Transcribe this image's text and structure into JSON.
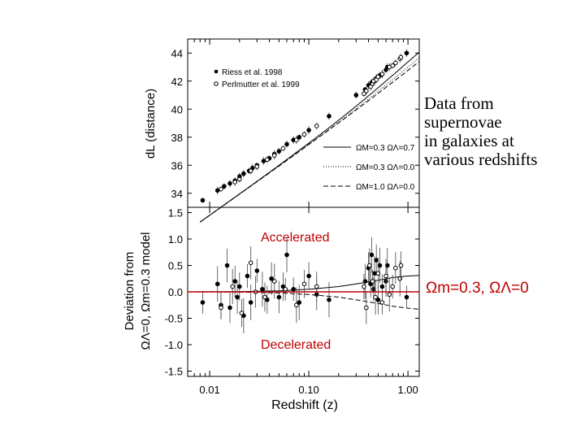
{
  "side_note": [
    "Data from",
    "supernovae",
    "in galaxies at",
    "various redshifts"
  ],
  "reference_line_label": [
    "Ωm=0.3",
    ", ",
    "ΩΛ=0"
  ],
  "colors": {
    "accent": "#c00000",
    "axes": "#000000",
    "data": "#000000",
    "reference_line": "#c00000"
  },
  "chart_data": [
    {
      "type": "scatter",
      "panel": "upper",
      "ylabel": "dL (distance)",
      "x_scale": "log",
      "xlim": [
        0.006,
        1.3
      ],
      "ylim": [
        33,
        45
      ],
      "y_ticks": [
        34,
        36,
        38,
        40,
        42,
        44
      ],
      "legend_data": [
        {
          "name": "Riess et al. 1998",
          "marker": "filled-circle"
        },
        {
          "name": "Perlmutter et al. 1999",
          "marker": "open-circle"
        }
      ],
      "legend_data_placement": "top-left",
      "legend_models": [
        {
          "name": "ΩM=0.3  ΩΛ=0.7",
          "style": "solid"
        },
        {
          "name": "ΩM=0.3  ΩΛ=0.0",
          "style": "dotted"
        },
        {
          "name": "ΩM=1.0  ΩΛ=0.0",
          "style": "dashed"
        }
      ],
      "legend_models_placement": "bottom-right",
      "series": [
        {
          "name": "Riess et al. 1998",
          "marker": "filled",
          "x": [
            0.0085,
            0.012,
            0.014,
            0.016,
            0.018,
            0.02,
            0.022,
            0.025,
            0.027,
            0.03,
            0.035,
            0.04,
            0.045,
            0.05,
            0.06,
            0.07,
            0.08,
            0.1,
            0.16,
            0.3,
            0.37,
            0.4,
            0.43,
            0.46,
            0.48,
            0.5,
            0.52,
            0.55,
            0.6,
            0.62,
            0.97
          ],
          "y": [
            33.5,
            34.2,
            34.5,
            34.7,
            34.9,
            35.2,
            35.4,
            35.6,
            35.8,
            36.0,
            36.3,
            36.5,
            36.8,
            37.0,
            37.5,
            37.8,
            38.0,
            38.5,
            39.5,
            41.0,
            41.4,
            41.7,
            41.9,
            42.0,
            42.2,
            42.3,
            42.4,
            42.5,
            42.8,
            43.0,
            44.0
          ]
        },
        {
          "name": "Perlmutter et al. 1999",
          "marker": "open",
          "x": [
            0.013,
            0.018,
            0.02,
            0.026,
            0.03,
            0.038,
            0.045,
            0.055,
            0.075,
            0.09,
            0.12,
            0.36,
            0.38,
            0.42,
            0.44,
            0.45,
            0.48,
            0.5,
            0.55,
            0.65,
            0.7,
            0.75,
            0.83,
            0.85
          ],
          "y": [
            34.3,
            34.8,
            35.0,
            35.6,
            35.9,
            36.4,
            36.7,
            37.2,
            37.8,
            38.2,
            38.8,
            41.1,
            41.3,
            41.6,
            41.8,
            42.0,
            42.1,
            42.3,
            42.5,
            43.0,
            43.1,
            43.3,
            43.6,
            43.7
          ]
        }
      ]
    },
    {
      "type": "scatter",
      "panel": "lower",
      "xlabel": "Redshift (z)",
      "ylabel_line1": "Deviation from",
      "ylabel_line2": "ΩΛ=0, Ωm=0.3 model",
      "x_scale": "log",
      "xlim": [
        0.006,
        1.3
      ],
      "ylim": [
        -1.6,
        1.6
      ],
      "x_ticks": [
        "0.01",
        "0.10",
        "1.00"
      ],
      "y_ticks": [
        "1.5",
        "1.0",
        "0.5",
        "0.0",
        "-0.5",
        "-1.0",
        "-1.5"
      ],
      "annotations": [
        "Accelerated",
        "Decelerated"
      ],
      "series": [
        {
          "name": "Riess et al. 1998",
          "marker": "filled",
          "x": [
            0.0085,
            0.012,
            0.013,
            0.015,
            0.016,
            0.018,
            0.019,
            0.02,
            0.022,
            0.024,
            0.026,
            0.03,
            0.034,
            0.038,
            0.042,
            0.05,
            0.055,
            0.06,
            0.07,
            0.08,
            0.1,
            0.12,
            0.16,
            0.37,
            0.4,
            0.42,
            0.43,
            0.45,
            0.46,
            0.48,
            0.5,
            0.52,
            0.55,
            0.6,
            0.62,
            0.97
          ],
          "y": [
            -0.2,
            0.15,
            -0.25,
            0.5,
            -0.3,
            0.2,
            -0.1,
            0.1,
            -0.45,
            0.3,
            -0.2,
            0.4,
            0.05,
            -0.15,
            0.25,
            -0.1,
            0.1,
            0.7,
            0.05,
            -0.2,
            0.3,
            -0.05,
            -0.15,
            0.2,
            0.45,
            0.15,
            0.7,
            0.05,
            0.35,
            0.6,
            -0.15,
            0.5,
            0.1,
            0.2,
            0.5,
            -0.1
          ]
        },
        {
          "name": "Perlmutter et al. 1999",
          "marker": "open",
          "x": [
            0.013,
            0.017,
            0.021,
            0.026,
            0.029,
            0.036,
            0.045,
            0.058,
            0.075,
            0.09,
            0.12,
            0.36,
            0.38,
            0.41,
            0.44,
            0.47,
            0.5,
            0.55,
            0.6,
            0.65,
            0.7,
            0.75,
            0.83,
            0.85
          ],
          "y": [
            -0.3,
            0.1,
            -0.4,
            0.55,
            0.0,
            -0.1,
            0.2,
            0.05,
            -0.25,
            0.15,
            0.1,
            0.1,
            -0.3,
            0.5,
            0.2,
            -0.1,
            0.35,
            -0.2,
            0.3,
            -0.05,
            0.1,
            0.45,
            0.25,
            0.5
          ]
        }
      ],
      "model_curves": [
        {
          "name": "ΩM=0.3 ΩΛ=0.7",
          "style": "solid",
          "x": [
            0.006,
            0.02,
            0.05,
            0.1,
            0.2,
            0.3,
            0.5,
            0.7,
            1.0,
            1.3
          ],
          "y": [
            0.0,
            0.005,
            0.02,
            0.05,
            0.1,
            0.15,
            0.22,
            0.27,
            0.3,
            0.31
          ]
        },
        {
          "name": "ΩM=1.0 ΩΛ=0.0",
          "style": "dashed",
          "x": [
            0.006,
            0.02,
            0.05,
            0.1,
            0.2,
            0.3,
            0.5,
            0.7,
            1.0,
            1.3
          ],
          "y": [
            0.0,
            -0.005,
            -0.02,
            -0.05,
            -0.1,
            -0.15,
            -0.22,
            -0.27,
            -0.31,
            -0.33
          ]
        }
      ]
    }
  ]
}
